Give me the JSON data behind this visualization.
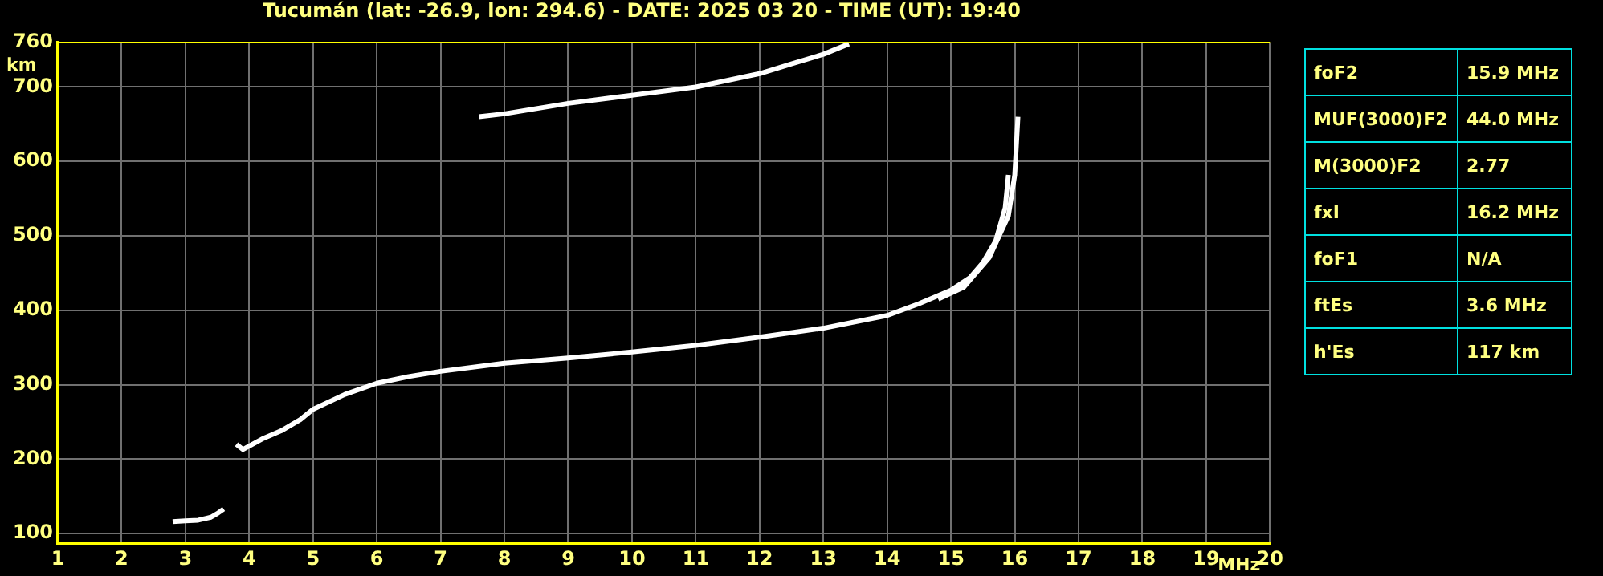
{
  "chart_data": [
    {
      "type": "line",
      "title": "Tucumán (lat: -26.9, lon: 294.6) - DATE: 2025 03 20 - TIME (UT): 19:40",
      "xlabel": "MHz",
      "ylabel": "km",
      "xlim": [
        1,
        20
      ],
      "xticks": [
        1,
        2,
        3,
        4,
        5,
        6,
        7,
        8,
        9,
        10,
        11,
        12,
        13,
        14,
        15,
        16,
        17,
        18,
        19,
        20
      ],
      "ylim": [
        87,
        760
      ],
      "yticks": [
        100,
        200,
        300,
        400,
        500,
        600,
        700,
        760
      ],
      "grid": true,
      "marker": "none",
      "line_style": "solid",
      "series": [
        {
          "color": "#ffffff",
          "x": [
            2.8,
            3.0,
            3.2,
            3.4,
            3.5,
            3.6
          ],
          "values": [
            116,
            117,
            118,
            122,
            127,
            133
          ]
        },
        {
          "color": "#ffffff",
          "x": [
            3.8,
            3.9,
            4.2,
            4.5,
            4.8,
            5.0,
            5.5,
            6,
            6.5,
            7,
            8,
            9,
            10,
            11,
            12,
            13,
            14,
            14.5,
            15,
            15.3,
            15.5,
            15.7,
            15.85,
            15.9
          ],
          "values": [
            220,
            213,
            227,
            238,
            253,
            267,
            287,
            302,
            311,
            318,
            329,
            336,
            344,
            353,
            364,
            376,
            393,
            409,
            427,
            444,
            464,
            493,
            538,
            582
          ]
        },
        {
          "color": "#ffffff",
          "x": [
            14.8,
            15.2,
            15.6,
            15.9,
            16.0,
            16.05
          ],
          "values": [
            415,
            431,
            471,
            527,
            582,
            660
          ]
        },
        {
          "color": "#ffffff",
          "x": [
            7.6,
            8,
            9,
            10,
            11,
            12,
            12.5,
            13,
            13.4
          ],
          "values": [
            660,
            664,
            678,
            689,
            700,
            718,
            731,
            744,
            758
          ]
        }
      ]
    },
    {
      "type": "other",
      "annotations": [
        "foF2",
        "15.9 MHz",
        "MUF(3000)F2",
        "44.0 MHz",
        "M(3000)F2",
        "2.77",
        "fxI",
        "16.2 MHz",
        "foF1",
        "N/A",
        "ftEs",
        "3.6 MHz",
        "h'Es",
        "117 km"
      ]
    }
  ]
}
